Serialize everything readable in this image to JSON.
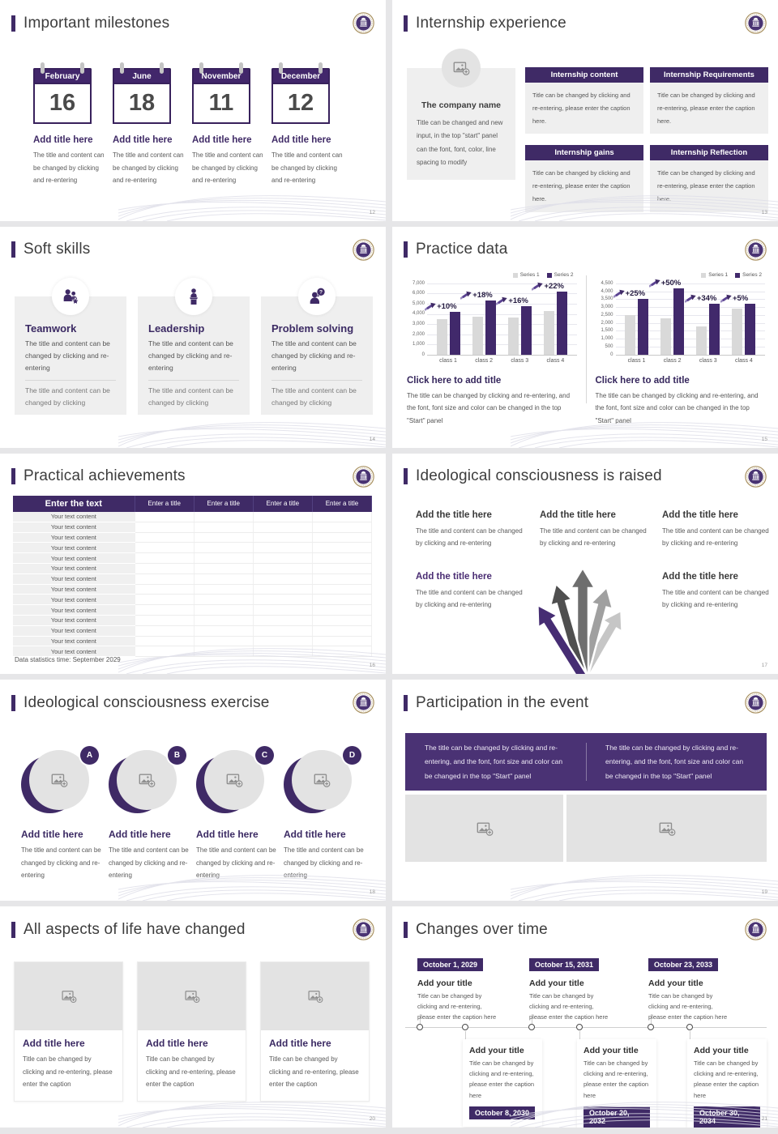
{
  "theme": {
    "purple_dark": "#3f2a66",
    "purple_banner": "#4a3274",
    "chart_purple": "#41296b",
    "chart_gray": "#d9d9d9",
    "title_ink": "#3d3d3d",
    "body_gray": "#595959",
    "card_gray": "#efefef"
  },
  "icons": {
    "logo": "university-seal",
    "placeholder": "add-image-icon",
    "annotation": "growth-arrow-icon",
    "teamwork": "two-people-star-icon",
    "leadership": "speaker-podium-icon",
    "problem": "person-question-icon",
    "calendar": "calendar-icon"
  },
  "slides": {
    "milestones": {
      "title": "Important milestones",
      "page": "12",
      "items": [
        {
          "month": "February",
          "day": "16",
          "title": "Add title here",
          "body": "The title and content can be changed by clicking and re-entering"
        },
        {
          "month": "June",
          "day": "18",
          "title": "Add title here",
          "body": "The title and content can be changed by clicking and re-entering"
        },
        {
          "month": "November",
          "day": "11",
          "title": "Add title here",
          "body": "The title and content can be changed by clicking and re-entering"
        },
        {
          "month": "December",
          "day": "12",
          "title": "Add title here",
          "body": "The title and content can be changed by clicking and re-entering"
        }
      ]
    },
    "internship": {
      "title": "Internship experience",
      "page": "13",
      "company": {
        "name": "The company name",
        "body": "Title can be changed and new input, in the top \"start\" panel can the font, font, color, line spacing to modify"
      },
      "boxes": [
        {
          "header": "Internship content",
          "body": "Title can be changed by clicking and re-entering, please enter the caption here."
        },
        {
          "header": "Internship Requirements",
          "body": "Title can be changed by clicking and re-entering, please enter the caption here."
        },
        {
          "header": "Internship gains",
          "body": "Title can be changed by clicking and re-entering, please enter the caption here."
        },
        {
          "header": "Internship Reflection",
          "body": "Title can be changed by clicking and re-entering, please enter the caption here."
        }
      ]
    },
    "soft_skills": {
      "title": "Soft skills",
      "page": "14",
      "cards": [
        {
          "name": "Teamwork",
          "body1": "The title and content can be changed by clicking and re-entering",
          "body2": "The title and content can be changed by clicking"
        },
        {
          "name": "Leadership",
          "body1": "The title and content can be changed by clicking and re-entering",
          "body2": "The title and content can be changed by clicking"
        },
        {
          "name": "Problem solving",
          "body1": "The title and content can be changed by clicking and re-entering",
          "body2": "The title and content can be changed by clicking"
        }
      ]
    },
    "practice_data": {
      "title": "Practice data",
      "page": "15",
      "panels": [
        {
          "caption_title": "Click here to add title",
          "caption_body": "The title can be changed by clicking and re-entering, and the font, font size and color can be changed in the top \"Start\" panel"
        },
        {
          "caption_title": "Click here to add title",
          "caption_body": "The title can be changed by clicking and re-entering, and the font, font size and color can be changed in the top \"Start\" panel"
        }
      ]
    },
    "achievements": {
      "title": "Practical achievements",
      "page": "16",
      "table": {
        "header_main": "Enter the text",
        "header_cols": [
          "Enter a title",
          "Enter a title",
          "Enter a title",
          "Enter a title"
        ],
        "row_label": "Your text content",
        "row_count": 14
      },
      "footnote": "Data statistics time: September 2029"
    },
    "raised": {
      "title": "Ideological consciousness is raised",
      "page": "17",
      "blocks": [
        {
          "title": "Add the title here",
          "body": "The title and content can be changed by clicking and re-entering"
        },
        {
          "title": "Add the title here",
          "body": "The title and content can be changed by clicking and re-entering"
        },
        {
          "title": "Add the title here",
          "body": "The title and content can be changed by clicking and re-entering"
        },
        {
          "title": "Add the title here",
          "body": "The title and content can be changed by clicking and re-entering"
        },
        {
          "title": "Add the title here",
          "body": "The title and content can be changed by clicking and re-entering"
        }
      ]
    },
    "exercise": {
      "title": "Ideological consciousness exercise",
      "page": "18",
      "items": [
        {
          "letter": "A",
          "title": "Add title here",
          "body": "The title and content can be changed by clicking and re-entering"
        },
        {
          "letter": "B",
          "title": "Add title here",
          "body": "The title and content can be changed by clicking and re-entering"
        },
        {
          "letter": "C",
          "title": "Add title here",
          "body": "The title and content can be changed by clicking and re-entering"
        },
        {
          "letter": "D",
          "title": "Add title here",
          "body": "The title and content can be changed by clicking and re-entering"
        }
      ]
    },
    "participation": {
      "title": "Participation in the event",
      "page": "19",
      "banner_left": "The title can be changed by clicking and re-entering, and the font, font size and color can be changed in the top \"Start\" panel",
      "banner_right": "The title can be changed by clicking and re-entering, and the font, font size and color can be changed in the top \"Start\" panel"
    },
    "life_changed": {
      "title": "All aspects of life have changed",
      "page": "20",
      "cards": [
        {
          "title": "Add title here",
          "body": "Title can be changed by clicking and re-entering, please enter the caption"
        },
        {
          "title": "Add title here",
          "body": "Title can be changed by clicking and re-entering, please enter the caption"
        },
        {
          "title": "Add title here",
          "body": "Title can be changed by clicking and re-entering, please enter the caption"
        }
      ]
    },
    "changes": {
      "title": "Changes over time",
      "page": "21",
      "top": [
        {
          "date": "October 1, 2029",
          "title": "Add your title",
          "body": "Title can be changed by clicking and re-entering, please enter the caption here"
        },
        {
          "date": "October 15, 2031",
          "title": "Add your title",
          "body": "Title can be changed by clicking and re-entering, please enter the caption here"
        },
        {
          "date": "October 23, 2033",
          "title": "Add your title",
          "body": "Title can be changed by clicking and re-entering, please enter the caption here"
        }
      ],
      "bottom": [
        {
          "date": "October 8, 2030",
          "title": "Add your title",
          "body": "Title can be changed by clicking and re-entering, please enter the caption here"
        },
        {
          "date": "October 20, 2032",
          "title": "Add your title",
          "body": "Title can be changed by clicking and re-entering, please enter the caption here"
        },
        {
          "date": "October 30, 2034",
          "title": "Add your title",
          "body": "Title can be changed by clicking and re-entering, please enter the caption here"
        }
      ]
    }
  },
  "chart_data": [
    {
      "type": "bar",
      "title": "Click here to add title",
      "categories": [
        "class 1",
        "class 2",
        "class 3",
        "class 4"
      ],
      "series": [
        {
          "name": "Series 1",
          "color": "#d9d9d9",
          "values": [
            3500,
            3750,
            3650,
            4300
          ]
        },
        {
          "name": "Series 2",
          "color": "#41296b",
          "values": [
            4200,
            5300,
            4750,
            6200
          ]
        }
      ],
      "annotations": [
        "+10%",
        "+18%",
        "+16%",
        "+22%"
      ],
      "ylim": [
        0,
        7000
      ],
      "ytick_step": 1000,
      "xlabel": "",
      "ylabel": "",
      "grid": true,
      "legend_position": "top-right"
    },
    {
      "type": "bar",
      "title": "Click here to add title",
      "categories": [
        "class 1",
        "class 2",
        "class 3",
        "class 4"
      ],
      "series": [
        {
          "name": "Series 1",
          "color": "#d9d9d9",
          "values": [
            2500,
            2300,
            1800,
            2900
          ]
        },
        {
          "name": "Series 2",
          "color": "#41296b",
          "values": [
            3500,
            4200,
            3200,
            3200
          ]
        }
      ],
      "annotations": [
        "+25%",
        "+50%",
        "+34%",
        "+5%"
      ],
      "ylim": [
        0,
        4500
      ],
      "ytick_step": 500,
      "xlabel": "",
      "ylabel": "",
      "grid": true,
      "legend_position": "top-right"
    }
  ]
}
